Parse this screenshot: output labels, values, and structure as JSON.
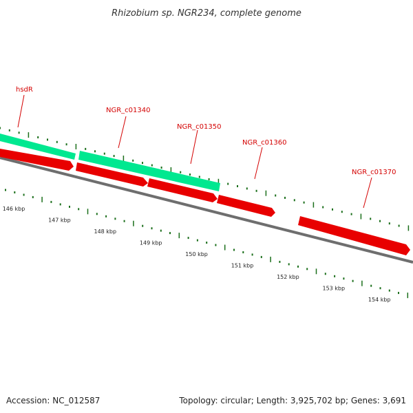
{
  "title": "Rhizobium sp. NGR234, complete genome",
  "footer": {
    "accession": "Accession: NC_012587",
    "summary": "Topology: circular; Length: 3,925,702 bp; Genes: 3,691"
  },
  "colors": {
    "forward_gene": "#00e890",
    "reverse_gene": "#e80000",
    "backbone": "#6e6e6e",
    "label": "#d40000",
    "tick": "#1a6e1a"
  },
  "scale": {
    "unit": "kbp",
    "ticks": [
      {
        "kbp": 146,
        "label": "146 kbp"
      },
      {
        "kbp": 147,
        "label": "147 kbp"
      },
      {
        "kbp": 148,
        "label": "148 kbp"
      },
      {
        "kbp": 149,
        "label": "149 kbp"
      },
      {
        "kbp": 150,
        "label": "150 kbp"
      },
      {
        "kbp": 151,
        "label": "151 kbp"
      },
      {
        "kbp": 152,
        "label": "152 kbp"
      },
      {
        "kbp": 153,
        "label": "153 kbp"
      },
      {
        "kbp": 154,
        "label": "154 kbp"
      }
    ]
  },
  "genes": [
    {
      "label": "hsdR",
      "strand": "forward"
    },
    {
      "label": "NGR_c01340",
      "strand": "forward"
    },
    {
      "label": "NGR_c01350",
      "strand": "reverse"
    },
    {
      "label": "NGR_c01360",
      "strand": "reverse"
    },
    {
      "label": "NGR_c01370",
      "strand": "reverse"
    }
  ]
}
